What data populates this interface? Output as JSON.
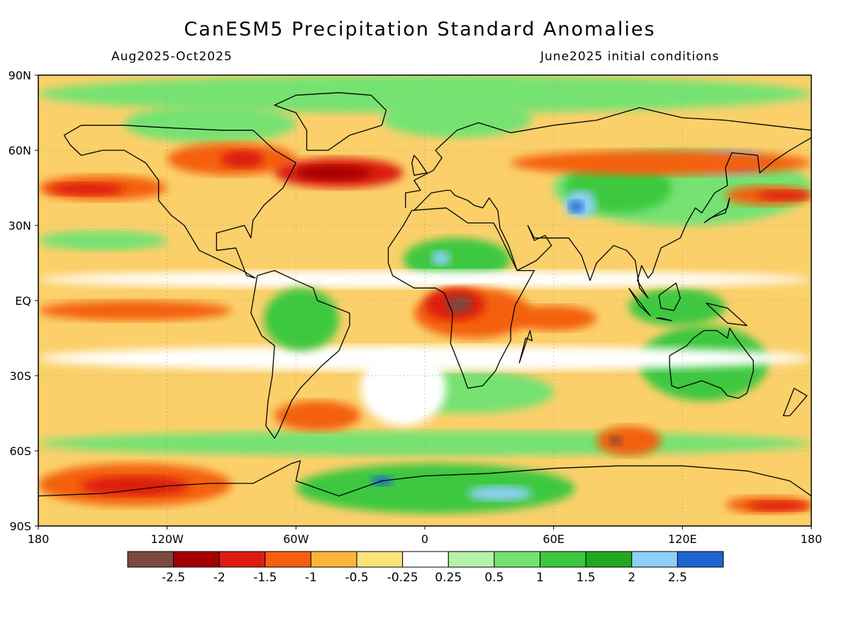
{
  "title": "CanESM5 Precipitation Standard Anomalies",
  "subtitle_left": "Aug2025-Oct2025",
  "subtitle_right": "June2025 initial conditions",
  "lat_labels": [
    "90N",
    "60N",
    "30N",
    "EQ",
    "30S",
    "60S",
    "90S"
  ],
  "lon_labels": [
    "180",
    "120W",
    "60W",
    "0",
    "60E",
    "120E",
    "180"
  ],
  "colorbar": {
    "labels": [
      "-2.5",
      "-2",
      "-1.5",
      "-1",
      "-0.5",
      "-0.25",
      "0.25",
      "0.5",
      "1",
      "1.5",
      "2",
      "2.5"
    ],
    "colors": [
      "#7a4a3e",
      "#a50000",
      "#dc1c10",
      "#f46010",
      "#fbb43c",
      "#fde27a",
      "#ffffff",
      "#b6f2a8",
      "#74e272",
      "#3cc840",
      "#22a822",
      "#8ed0f8",
      "#1e64d2"
    ]
  },
  "map": {
    "extent": {
      "lon": [
        -180,
        180
      ],
      "lat": [
        -90,
        90
      ]
    },
    "background_color": "#fbd06a",
    "coastline_color": "#000000"
  },
  "anomaly_regions": [
    {
      "color": "#74e272",
      "lon": [
        -180,
        180
      ],
      "lat": [
        75,
        90
      ]
    },
    {
      "color": "#74e272",
      "lon": [
        -140,
        -60
      ],
      "lat": [
        63,
        78
      ]
    },
    {
      "color": "#74e272",
      "lon": [
        -20,
        60
      ],
      "lat": [
        -45,
        -28
      ]
    },
    {
      "color": "#74e272",
      "lon": [
        -20,
        50
      ],
      "lat": [
        65,
        80
      ]
    },
    {
      "color": "#3cc840",
      "lon": [
        -10,
        40
      ],
      "lat": [
        8,
        25
      ]
    },
    {
      "color": "#8ed0f8",
      "lon": [
        3,
        12
      ],
      "lat": [
        14,
        20
      ]
    },
    {
      "color": "#3cc840",
      "lon": [
        100,
        160
      ],
      "lat": [
        -40,
        -10
      ]
    },
    {
      "color": "#3cc840",
      "lon": [
        95,
        140
      ],
      "lat": [
        -10,
        5
      ]
    },
    {
      "color": "#74e272",
      "lon": [
        60,
        180
      ],
      "lat": [
        30,
        60
      ]
    },
    {
      "color": "#3cc840",
      "lon": [
        65,
        115
      ],
      "lat": [
        35,
        55
      ]
    },
    {
      "color": "#8ed0f8",
      "lon": [
        65,
        80
      ],
      "lat": [
        33,
        44
      ]
    },
    {
      "color": "#1e64d2",
      "lon": [
        67,
        74
      ],
      "lat": [
        35,
        40
      ]
    },
    {
      "color": "#8ed0f8",
      "lon": [
        125,
        160
      ],
      "lat": [
        50,
        60
      ]
    },
    {
      "color": "#1e64d2",
      "lon": [
        140,
        155
      ],
      "lat": [
        52,
        57
      ]
    },
    {
      "color": "#3cc840",
      "lon": [
        -60,
        70
      ],
      "lat": [
        -85,
        -65
      ]
    },
    {
      "color": "#8ed0f8",
      "lon": [
        20,
        50
      ],
      "lat": [
        -80,
        -74
      ]
    },
    {
      "color": "#1e64d2",
      "lon": [
        -25,
        -15
      ],
      "lat": [
        -74,
        -70
      ]
    },
    {
      "color": "#74e272",
      "lon": [
        -180,
        180
      ],
      "lat": [
        -62,
        -52
      ]
    },
    {
      "color": "#74e272",
      "lon": [
        -180,
        -120
      ],
      "lat": [
        20,
        28
      ]
    },
    {
      "color": "#ffffff",
      "lon": [
        -180,
        180
      ],
      "lat": [
        -28,
        -18
      ]
    },
    {
      "color": "#ffffff",
      "lon": [
        -180,
        180
      ],
      "lat": [
        5,
        12
      ]
    },
    {
      "color": "#ffffff",
      "lon": [
        -30,
        10
      ],
      "lat": [
        -50,
        -20
      ]
    },
    {
      "color": "#f46010",
      "lon": [
        -180,
        -120
      ],
      "lat": [
        40,
        50
      ]
    },
    {
      "color": "#dc1c10",
      "lon": [
        -175,
        -140
      ],
      "lat": [
        42,
        47
      ]
    },
    {
      "color": "#f46010",
      "lon": [
        -120,
        -60
      ],
      "lat": [
        50,
        63
      ]
    },
    {
      "color": "#dc1c10",
      "lon": [
        -95,
        -75
      ],
      "lat": [
        53,
        60
      ]
    },
    {
      "color": "#dc1c10",
      "lon": [
        -70,
        -10
      ],
      "lat": [
        45,
        57
      ]
    },
    {
      "color": "#a50000",
      "lon": [
        -60,
        -25
      ],
      "lat": [
        48,
        54
      ]
    },
    {
      "color": "#f46010",
      "lon": [
        40,
        180
      ],
      "lat": [
        50,
        60
      ]
    },
    {
      "color": "#f46010",
      "lon": [
        140,
        180
      ],
      "lat": [
        38,
        46
      ]
    },
    {
      "color": "#dc1c10",
      "lon": [
        155,
        180
      ],
      "lat": [
        40,
        44
      ]
    },
    {
      "color": "#f46010",
      "lon": [
        -5,
        50
      ],
      "lat": [
        -15,
        5
      ]
    },
    {
      "color": "#dc1c10",
      "lon": [
        0,
        28
      ],
      "lat": [
        -8,
        5
      ]
    },
    {
      "color": "#7a4a3e",
      "lon": [
        10,
        22
      ],
      "lat": [
        -5,
        2
      ]
    },
    {
      "color": "#f46010",
      "lon": [
        40,
        80
      ],
      "lat": [
        -12,
        -2
      ]
    },
    {
      "color": "#f46010",
      "lon": [
        -180,
        -90
      ],
      "lat": [
        -82,
        -65
      ]
    },
    {
      "color": "#dc1c10",
      "lon": [
        -160,
        -110
      ],
      "lat": [
        -78,
        -70
      ]
    },
    {
      "color": "#f46010",
      "lon": [
        140,
        180
      ],
      "lat": [
        -85,
        -78
      ]
    },
    {
      "color": "#dc1c10",
      "lon": [
        150,
        180
      ],
      "lat": [
        -84,
        -80
      ]
    },
    {
      "color": "#f46010",
      "lon": [
        80,
        110
      ],
      "lat": [
        -62,
        -50
      ]
    },
    {
      "color": "#7a4a3e",
      "lon": [
        86,
        92
      ],
      "lat": [
        -58,
        -54
      ]
    },
    {
      "color": "#f46010",
      "lon": [
        -70,
        -30
      ],
      "lat": [
        -52,
        -40
      ]
    },
    {
      "color": "#f46010",
      "lon": [
        -180,
        -90
      ],
      "lat": [
        -8,
        0
      ]
    },
    {
      "color": "#3cc840",
      "lon": [
        -75,
        -40
      ],
      "lat": [
        -20,
        5
      ]
    }
  ],
  "coastlines": [
    [
      [
        -168,
        66
      ],
      [
        -160,
        70
      ],
      [
        -140,
        70
      ],
      [
        -120,
        69
      ],
      [
        -95,
        68
      ],
      [
        -80,
        68
      ],
      [
        -70,
        60
      ],
      [
        -60,
        55
      ],
      [
        -66,
        45
      ],
      [
        -75,
        38
      ],
      [
        -80,
        32
      ],
      [
        -81,
        25
      ],
      [
        -84,
        30
      ],
      [
        -97,
        27
      ],
      [
        -97,
        20
      ],
      [
        -88,
        21
      ],
      [
        -83,
        10
      ],
      [
        -79,
        9
      ],
      [
        -85,
        12
      ],
      [
        -95,
        16
      ],
      [
        -105,
        20
      ],
      [
        -112,
        30
      ],
      [
        -118,
        34
      ],
      [
        -124,
        40
      ],
      [
        -124,
        48
      ],
      [
        -130,
        55
      ],
      [
        -140,
        60
      ],
      [
        -150,
        60
      ],
      [
        -160,
        58
      ],
      [
        -165,
        62
      ],
      [
        -168,
        66
      ]
    ],
    [
      [
        -78,
        10
      ],
      [
        -70,
        12
      ],
      [
        -60,
        8
      ],
      [
        -52,
        5
      ],
      [
        -50,
        0
      ],
      [
        -35,
        -5
      ],
      [
        -35,
        -10
      ],
      [
        -40,
        -20
      ],
      [
        -48,
        -26
      ],
      [
        -58,
        -35
      ],
      [
        -62,
        -40
      ],
      [
        -65,
        -46
      ],
      [
        -68,
        -52
      ],
      [
        -70,
        -55
      ],
      [
        -74,
        -50
      ],
      [
        -73,
        -40
      ],
      [
        -71,
        -30
      ],
      [
        -70,
        -18
      ],
      [
        -76,
        -14
      ],
      [
        -81,
        -5
      ],
      [
        -80,
        0
      ],
      [
        -78,
        10
      ]
    ],
    [
      [
        -6,
        36
      ],
      [
        10,
        37
      ],
      [
        20,
        31
      ],
      [
        32,
        31
      ],
      [
        34,
        28
      ],
      [
        43,
        12
      ],
      [
        51,
        12
      ],
      [
        42,
        -2
      ],
      [
        40,
        -11
      ],
      [
        40,
        -16
      ],
      [
        35,
        -24
      ],
      [
        33,
        -28
      ],
      [
        27,
        -34
      ],
      [
        20,
        -35
      ],
      [
        18,
        -30
      ],
      [
        12,
        -17
      ],
      [
        13,
        -5
      ],
      [
        9,
        3
      ],
      [
        5,
        5
      ],
      [
        -5,
        5
      ],
      [
        -15,
        10
      ],
      [
        -17,
        15
      ],
      [
        -17,
        21
      ],
      [
        -10,
        30
      ],
      [
        -6,
        36
      ]
    ],
    [
      [
        -9,
        37
      ],
      [
        -9,
        43
      ],
      [
        -2,
        44
      ],
      [
        -5,
        48
      ],
      [
        4,
        52
      ],
      [
        8,
        57
      ],
      [
        5,
        60
      ],
      [
        15,
        68
      ],
      [
        25,
        71
      ],
      [
        40,
        67
      ],
      [
        60,
        70
      ],
      [
        80,
        72
      ],
      [
        100,
        77
      ],
      [
        120,
        73
      ],
      [
        140,
        72
      ],
      [
        160,
        70
      ],
      [
        180,
        68
      ]
    ],
    [
      [
        180,
        65
      ],
      [
        170,
        60
      ],
      [
        163,
        56
      ],
      [
        156,
        51
      ],
      [
        155,
        58
      ],
      [
        143,
        59
      ],
      [
        140,
        53
      ],
      [
        141,
        46
      ],
      [
        135,
        43
      ],
      [
        129,
        35
      ],
      [
        126,
        37
      ],
      [
        122,
        31
      ],
      [
        119,
        25
      ],
      [
        110,
        21
      ],
      [
        106,
        11
      ],
      [
        104,
        9
      ],
      [
        101,
        14
      ],
      [
        99,
        8
      ],
      [
        104,
        1
      ],
      [
        100,
        5
      ],
      [
        98,
        16
      ],
      [
        94,
        20
      ],
      [
        88,
        22
      ],
      [
        80,
        15
      ],
      [
        77,
        8
      ],
      [
        73,
        18
      ],
      [
        67,
        25
      ],
      [
        57,
        25
      ],
      [
        51,
        25
      ],
      [
        48,
        30
      ],
      [
        51,
        24
      ],
      [
        56,
        26
      ],
      [
        59,
        22
      ],
      [
        52,
        16
      ],
      [
        43,
        12
      ],
      [
        39,
        22
      ],
      [
        35,
        29
      ],
      [
        34,
        36
      ],
      [
        30,
        41
      ],
      [
        27,
        37
      ],
      [
        23,
        38
      ],
      [
        20,
        40
      ],
      [
        14,
        42
      ],
      [
        12,
        44
      ],
      [
        10,
        44
      ],
      [
        3,
        43
      ],
      [
        -5,
        36
      ]
    ],
    [
      [
        114,
        -22
      ],
      [
        114,
        -26
      ],
      [
        115,
        -34
      ],
      [
        118,
        -35
      ],
      [
        129,
        -32
      ],
      [
        138,
        -35
      ],
      [
        141,
        -38
      ],
      [
        146,
        -39
      ],
      [
        150,
        -37
      ],
      [
        153,
        -28
      ],
      [
        153,
        -24
      ],
      [
        145,
        -15
      ],
      [
        142,
        -11
      ],
      [
        141,
        -15
      ],
      [
        136,
        -12
      ],
      [
        130,
        -12
      ],
      [
        125,
        -15
      ],
      [
        122,
        -18
      ],
      [
        114,
        -22
      ]
    ],
    [
      [
        -180,
        -78
      ],
      [
        -150,
        -77
      ],
      [
        -120,
        -74
      ],
      [
        -100,
        -73
      ],
      [
        -80,
        -73
      ],
      [
        -62,
        -65
      ],
      [
        -58,
        -64
      ],
      [
        -60,
        -72
      ],
      [
        -40,
        -78
      ],
      [
        -20,
        -72
      ],
      [
        0,
        -70
      ],
      [
        30,
        -69
      ],
      [
        60,
        -67
      ],
      [
        90,
        -66
      ],
      [
        120,
        -66
      ],
      [
        150,
        -68
      ],
      [
        170,
        -72
      ],
      [
        180,
        -78
      ]
    ],
    [
      [
        -55,
        60
      ],
      [
        -45,
        60
      ],
      [
        -35,
        66
      ],
      [
        -20,
        70
      ],
      [
        -18,
        76
      ],
      [
        -25,
        82
      ],
      [
        -40,
        83
      ],
      [
        -60,
        82
      ],
      [
        -70,
        78
      ],
      [
        -60,
        75
      ],
      [
        -55,
        68
      ],
      [
        -55,
        60
      ]
    ],
    [
      [
        -5,
        50
      ],
      [
        1,
        51
      ],
      [
        -3,
        56
      ],
      [
        -5,
        58
      ],
      [
        -6,
        55
      ],
      [
        -5,
        50
      ]
    ],
    [
      [
        130,
        31
      ],
      [
        135,
        34
      ],
      [
        141,
        37
      ],
      [
        142,
        41
      ],
      [
        140,
        35
      ],
      [
        133,
        33
      ],
      [
        130,
        31
      ]
    ],
    [
      [
        95,
        5
      ],
      [
        105,
        -6
      ],
      [
        100,
        -2
      ],
      [
        95,
        5
      ]
    ],
    [
      [
        110,
        -7
      ],
      [
        115,
        -8
      ],
      [
        108,
        -7
      ],
      [
        110,
        -7
      ]
    ],
    [
      [
        109,
        2
      ],
      [
        117,
        7
      ],
      [
        119,
        1
      ],
      [
        116,
        -4
      ],
      [
        110,
        -3
      ],
      [
        109,
        2
      ]
    ],
    [
      [
        131,
        -1
      ],
      [
        141,
        -3
      ],
      [
        150,
        -10
      ],
      [
        141,
        -9
      ],
      [
        131,
        -1
      ]
    ],
    [
      [
        44,
        -25
      ],
      [
        47,
        -15
      ],
      [
        50,
        -16
      ],
      [
        49,
        -12
      ],
      [
        44,
        -25
      ]
    ],
    [
      [
        172,
        -35
      ],
      [
        178,
        -38
      ],
      [
        170,
        -46
      ],
      [
        167,
        -46
      ],
      [
        172,
        -35
      ]
    ]
  ]
}
